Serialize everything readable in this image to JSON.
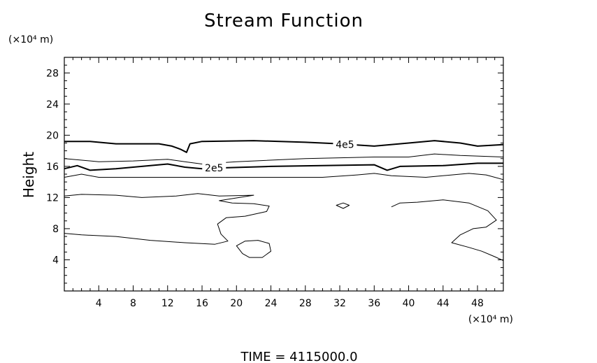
{
  "chart_data": {
    "type": "contour",
    "title": "Stream Function",
    "ylabel": "Height",
    "y_unit": "(×10⁴ m)",
    "x_unit": "(×10⁴ m)",
    "footer": "TIME  =  4115000.0",
    "xlim": [
      0,
      51
    ],
    "ylim": [
      0,
      30
    ],
    "x_ticks": [
      4,
      8,
      12,
      16,
      20,
      24,
      28,
      32,
      36,
      40,
      44,
      48
    ],
    "y_ticks": [
      4,
      8,
      12,
      16,
      20,
      24,
      28
    ],
    "contours": [
      {
        "label": "4e5",
        "label_at": [
          32.6,
          18.8
        ],
        "bold": true,
        "points": [
          [
            0,
            19.2
          ],
          [
            3,
            19.2
          ],
          [
            6,
            18.9
          ],
          [
            9,
            18.9
          ],
          [
            11,
            18.9
          ],
          [
            12.5,
            18.6
          ],
          [
            13.5,
            18.2
          ],
          [
            14.2,
            17.8
          ],
          [
            14.6,
            18.9
          ],
          [
            16,
            19.2
          ],
          [
            22,
            19.3
          ],
          [
            28,
            19.1
          ],
          [
            32,
            18.9
          ],
          [
            36,
            18.6
          ],
          [
            40,
            19
          ],
          [
            43,
            19.3
          ],
          [
            46,
            19
          ],
          [
            48,
            18.6
          ],
          [
            51,
            18.8
          ]
        ]
      },
      {
        "label": "",
        "bold": false,
        "points": [
          [
            0,
            17
          ],
          [
            4,
            16.6
          ],
          [
            8,
            16.7
          ],
          [
            12,
            16.9
          ],
          [
            14,
            16.6
          ],
          [
            16,
            16.3
          ],
          [
            20,
            16.6
          ],
          [
            28,
            17
          ],
          [
            36,
            17.2
          ],
          [
            40,
            17.2
          ],
          [
            43,
            17.6
          ],
          [
            46,
            17.4
          ],
          [
            51,
            17.2
          ]
        ]
      },
      {
        "label": "2e5",
        "label_at": [
          17.4,
          15.8
        ],
        "bold": true,
        "points": [
          [
            0,
            15.7
          ],
          [
            1.5,
            16.1
          ],
          [
            3,
            15.5
          ],
          [
            6,
            15.7
          ],
          [
            10,
            16.1
          ],
          [
            12,
            16.3
          ],
          [
            14,
            15.9
          ],
          [
            16,
            15.7
          ],
          [
            18,
            15.8
          ],
          [
            24,
            16.0
          ],
          [
            30,
            16.1
          ],
          [
            36,
            16.2
          ],
          [
            37.5,
            15.5
          ],
          [
            39,
            16
          ],
          [
            44,
            16.1
          ],
          [
            48,
            16.4
          ],
          [
            51,
            16.4
          ]
        ]
      },
      {
        "label": "",
        "bold": false,
        "points": [
          [
            0,
            14.6
          ],
          [
            2,
            15
          ],
          [
            4,
            14.6
          ],
          [
            10,
            14.6
          ],
          [
            20,
            14.6
          ],
          [
            30,
            14.6
          ],
          [
            34,
            14.9
          ],
          [
            36,
            15.1
          ],
          [
            38,
            14.8
          ],
          [
            42,
            14.6
          ],
          [
            45,
            14.9
          ],
          [
            47,
            15.1
          ],
          [
            49,
            14.9
          ],
          [
            51,
            14.3
          ]
        ]
      },
      {
        "label": "",
        "bold": false,
        "points": [
          [
            0,
            12.2
          ],
          [
            2,
            12.4
          ],
          [
            6,
            12.3
          ],
          [
            9,
            12
          ],
          [
            13,
            12.2
          ],
          [
            15.5,
            12.5
          ],
          [
            18,
            12.2
          ],
          [
            22,
            12.3
          ],
          [
            18,
            11.6
          ],
          [
            19.5,
            11.3
          ],
          [
            22,
            11.2
          ],
          [
            23.8,
            10.9
          ],
          [
            23.5,
            10.2
          ],
          [
            21,
            9.6
          ],
          [
            18.8,
            9.4
          ],
          [
            17.8,
            8.6
          ],
          [
            18.2,
            7.3
          ],
          [
            19,
            6.4
          ],
          [
            17.5,
            6
          ],
          [
            14,
            6.2
          ],
          [
            10,
            6.5
          ],
          [
            6,
            7
          ],
          [
            2,
            7.2
          ],
          [
            0,
            7.4
          ]
        ]
      },
      {
        "label": "",
        "bold": false,
        "points": [
          [
            38,
            10.8
          ],
          [
            39,
            11.3
          ],
          [
            41,
            11.4
          ],
          [
            44,
            11.7
          ],
          [
            47,
            11.3
          ],
          [
            49.2,
            10.3
          ],
          [
            50.2,
            9.1
          ],
          [
            49,
            8.2
          ],
          [
            47.5,
            8
          ],
          [
            46,
            7.2
          ],
          [
            45,
            6.2
          ],
          [
            47,
            5.6
          ],
          [
            48.5,
            5.1
          ],
          [
            50,
            4.4
          ],
          [
            51,
            3.9
          ]
        ]
      },
      {
        "label": "",
        "bold": false,
        "closed": true,
        "points": [
          [
            20,
            5.8
          ],
          [
            21,
            6.4
          ],
          [
            22.5,
            6.5
          ],
          [
            23.8,
            6.1
          ],
          [
            24,
            5.1
          ],
          [
            23,
            4.3
          ],
          [
            21.5,
            4.3
          ],
          [
            20.7,
            4.8
          ]
        ]
      },
      {
        "label": "",
        "bold": false,
        "closed": true,
        "points": [
          [
            31.6,
            11.0
          ],
          [
            32.4,
            11.3
          ],
          [
            33.1,
            11.0
          ],
          [
            32.4,
            10.6
          ]
        ]
      }
    ]
  }
}
